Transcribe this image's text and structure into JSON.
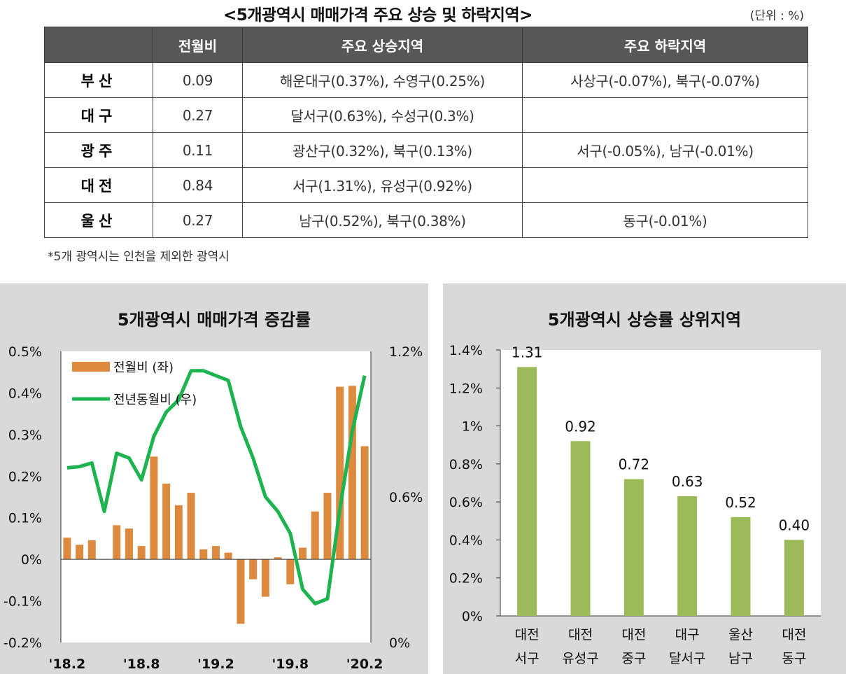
{
  "header": {
    "title": "<5개광역시 매매가격 주요 상승 및 하락지역>",
    "unit": "(단위 : %)"
  },
  "table": {
    "columns": [
      "",
      "전월비",
      "주요 상승지역",
      "주요 하락지역"
    ],
    "rows": [
      {
        "city": "부산",
        "mom": "0.09",
        "rise": "해운대구(0.37%), 수영구(0.25%)",
        "fall": "사상구(-0.07%), 북구(-0.07%)"
      },
      {
        "city": "대구",
        "mom": "0.27",
        "rise": "달서구(0.63%), 수성구(0.3%)",
        "fall": ""
      },
      {
        "city": "광주",
        "mom": "0.11",
        "rise": "광산구(0.32%), 북구(0.13%)",
        "fall": "서구(-0.05%), 남구(-0.01%)"
      },
      {
        "city": "대전",
        "mom": "0.84",
        "rise": "서구(1.31%), 유성구(0.92%)",
        "fall": ""
      },
      {
        "city": "울산",
        "mom": "0.27",
        "rise": "남구(0.52%), 북구(0.38%)",
        "fall": "동구(-0.01%)"
      }
    ]
  },
  "footnote": "*5개 광역시는 인천을 제외한 광역시",
  "chart_data": [
    {
      "type": "bar",
      "title": "5개광역시 매매가격 증감률",
      "legend_position": "top-left",
      "x_tick_labels": [
        "'18.2",
        "'18.8",
        "'19.2",
        "'19.8",
        "'20.2"
      ],
      "y_left_ticks": [
        "0.5%",
        "0.4%",
        "0.3%",
        "0.2%",
        "0.1%",
        "0%",
        "-0.1%",
        "-0.2%"
      ],
      "y_right_ticks": [
        "1.2%",
        "0.6%",
        "0%"
      ],
      "ylim_left": [
        -0.2,
        0.5
      ],
      "ylim_right": [
        0,
        1.2
      ],
      "series": [
        {
          "name": "전월비 (좌)",
          "type": "bar",
          "axis": "left",
          "color": "#dd8a3e",
          "values": [
            0.052,
            0.035,
            0.046,
            0.0,
            0.082,
            0.074,
            0.032,
            0.247,
            0.182,
            0.13,
            0.16,
            0.024,
            0.032,
            0.016,
            -0.155,
            -0.048,
            -0.09,
            0.005,
            -0.06,
            0.028,
            0.115,
            0.16,
            0.415,
            0.417,
            0.272
          ]
        },
        {
          "name": "전년동월비 (우)",
          "type": "line",
          "axis": "right",
          "color": "#1db34f",
          "values": [
            0.72,
            0.725,
            0.74,
            0.54,
            0.78,
            0.76,
            0.67,
            0.85,
            0.95,
            1.0,
            1.12,
            1.12,
            1.1,
            1.08,
            0.89,
            0.76,
            0.6,
            0.54,
            0.45,
            0.22,
            0.16,
            0.18,
            0.55,
            0.87,
            1.1
          ]
        }
      ]
    },
    {
      "type": "bar",
      "title": "5개광역시 상승률 상위지역",
      "categories": [
        "대전\n서구",
        "대전\n유성구",
        "대전\n중구",
        "대구\n달서구",
        "울산\n남구",
        "대전\n동구"
      ],
      "category_lines": [
        [
          "대전",
          "서구"
        ],
        [
          "대전",
          "유성구"
        ],
        [
          "대전",
          "중구"
        ],
        [
          "대구",
          "달서구"
        ],
        [
          "울산",
          "남구"
        ],
        [
          "대전",
          "동구"
        ]
      ],
      "values": [
        1.31,
        0.92,
        0.72,
        0.63,
        0.52,
        0.4
      ],
      "data_labels": [
        "1.31",
        "0.92",
        "0.72",
        "0.63",
        "0.52",
        "0.40"
      ],
      "y_ticks": [
        "1.4%",
        "1.2%",
        "1%",
        "0.8%",
        "0.6%",
        "0.4%",
        "0.2%",
        "0%"
      ],
      "ylim": [
        0,
        1.4
      ],
      "color": "#9bbb59"
    }
  ]
}
